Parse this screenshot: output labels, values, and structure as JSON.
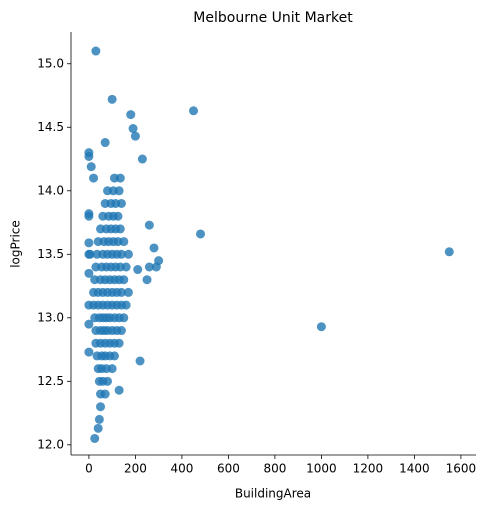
{
  "chart_data": {
    "type": "scatter",
    "title": "Melbourne Unit Market",
    "x_label": "BuildingArea",
    "y_label": "logPrice",
    "color": "#1f77b4",
    "xlim": [
      -77,
      1665
    ],
    "ylim": [
      11.92,
      15.25
    ],
    "xticks": [
      0,
      200,
      400,
      600,
      800,
      1000,
      1200,
      1400,
      1600
    ],
    "yticks": [
      {
        "value": 12,
        "label": "12.0"
      },
      {
        "value": 12.5,
        "label": "12.5"
      },
      {
        "value": 13,
        "label": "13.0"
      },
      {
        "value": 13.5,
        "label": "13.5"
      },
      {
        "value": 14,
        "label": "14.0"
      },
      {
        "value": 14.5,
        "label": "14.5"
      },
      {
        "value": 15,
        "label": "15.0"
      }
    ],
    "x": [
      50,
      70,
      45,
      60,
      80,
      40,
      55,
      75,
      100,
      35,
      55,
      70,
      90,
      110,
      30,
      50,
      70,
      90,
      110,
      130,
      30,
      50,
      65,
      80,
      100,
      120,
      140,
      25,
      45,
      60,
      75,
      90,
      110,
      130,
      150,
      20,
      40,
      60,
      80,
      100,
      120,
      140,
      160,
      20,
      40,
      60,
      80,
      100,
      120,
      140,
      170,
      25,
      50,
      70,
      90,
      110,
      130,
      150,
      30,
      55,
      75,
      95,
      115,
      135,
      160,
      0,
      35,
      60,
      80,
      100,
      120,
      140,
      170,
      40,
      65,
      85,
      105,
      125,
      150,
      50,
      75,
      95,
      115,
      135,
      0,
      60,
      85,
      105,
      125,
      70,
      95,
      115,
      140,
      80,
      105,
      130,
      110,
      135,
      30,
      100,
      450,
      480,
      1000,
      1550,
      220,
      130,
      300,
      280,
      260,
      180,
      190,
      200,
      230,
      0,
      0,
      10,
      20,
      70,
      260,
      290,
      250,
      210,
      25,
      40,
      45,
      50,
      0,
      0,
      0,
      0,
      0,
      0,
      5
    ],
    "values": [
      12.4,
      12.4,
      12.5,
      12.5,
      12.5,
      12.6,
      12.6,
      12.6,
      12.6,
      12.7,
      12.7,
      12.7,
      12.7,
      12.7,
      12.8,
      12.8,
      12.8,
      12.8,
      12.8,
      12.8,
      12.9,
      12.9,
      12.9,
      12.9,
      12.9,
      12.9,
      12.9,
      13.0,
      13.0,
      13.0,
      13.0,
      13.0,
      13.0,
      13.0,
      13.0,
      13.1,
      13.1,
      13.1,
      13.1,
      13.1,
      13.1,
      13.1,
      13.1,
      13.2,
      13.2,
      13.2,
      13.2,
      13.2,
      13.2,
      13.2,
      13.2,
      13.3,
      13.3,
      13.3,
      13.3,
      13.3,
      13.3,
      13.3,
      13.4,
      13.4,
      13.4,
      13.4,
      13.4,
      13.4,
      13.4,
      13.5,
      13.5,
      13.5,
      13.5,
      13.5,
      13.5,
      13.5,
      13.5,
      13.6,
      13.6,
      13.6,
      13.6,
      13.6,
      13.6,
      13.7,
      13.7,
      13.7,
      13.7,
      13.7,
      13.8,
      13.8,
      13.8,
      13.8,
      13.8,
      13.9,
      13.9,
      13.9,
      13.9,
      14.0,
      14.0,
      14.0,
      14.1,
      14.1,
      15.1,
      14.72,
      14.63,
      13.66,
      12.93,
      13.52,
      12.66,
      12.43,
      13.45,
      13.55,
      13.73,
      14.6,
      14.49,
      14.43,
      14.25,
      14.3,
      14.27,
      14.19,
      14.1,
      14.38,
      13.4,
      13.4,
      13.3,
      13.38,
      12.05,
      12.13,
      12.2,
      12.3,
      13.82,
      13.59,
      13.35,
      13.1,
      12.95,
      12.73,
      13.5
    ]
  }
}
